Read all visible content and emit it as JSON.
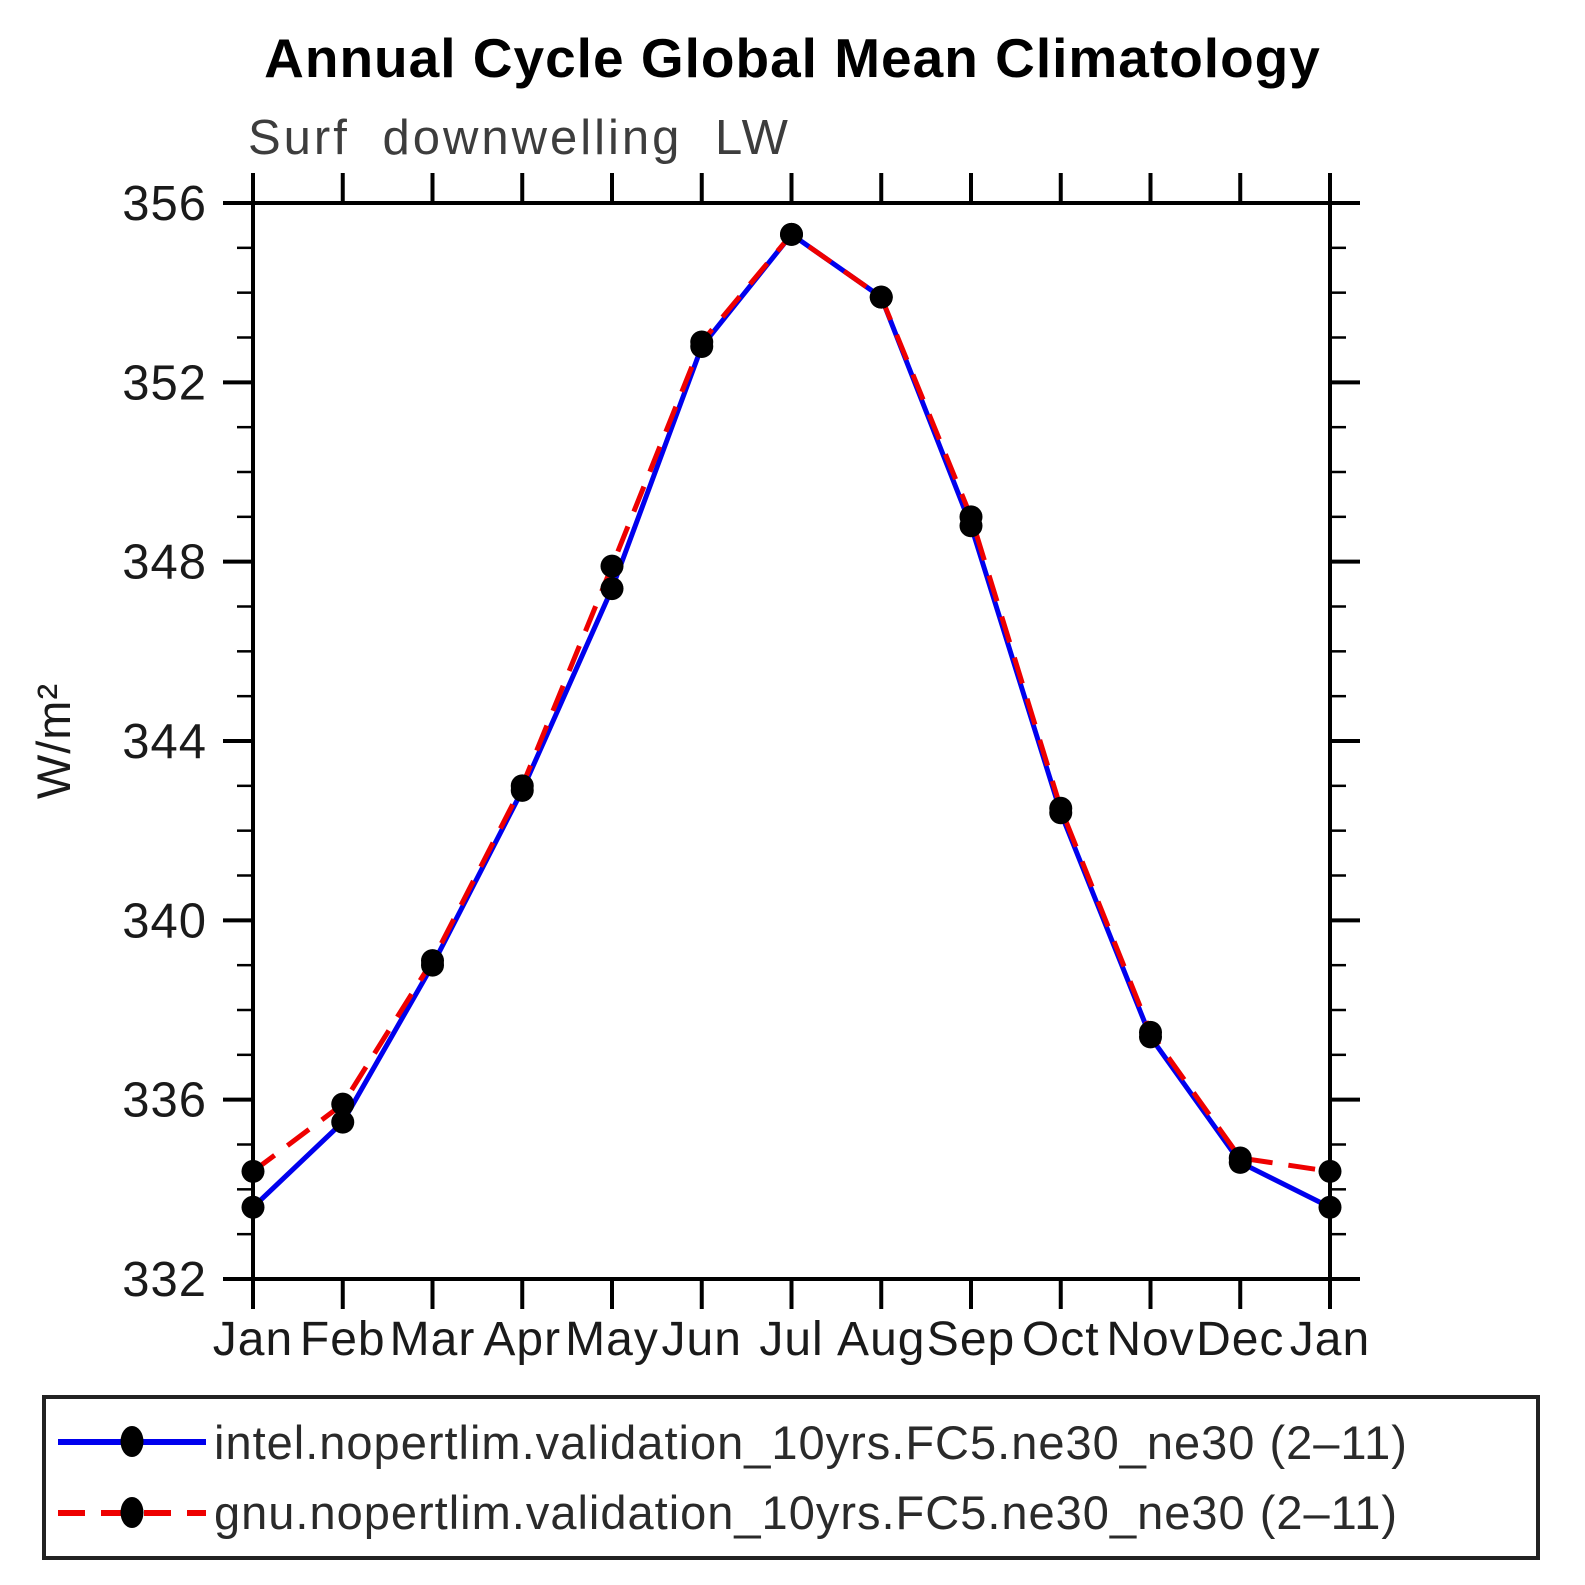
{
  "title": "Annual Cycle Global Mean Climatology",
  "subtitle": "Surf downwelling LW",
  "chart_data": {
    "type": "line",
    "x_categories": [
      "Jan",
      "Feb",
      "Mar",
      "Apr",
      "May",
      "Jun",
      "Jul",
      "Aug",
      "Sep",
      "Oct",
      "Nov",
      "Dec",
      "Jan"
    ],
    "ylabel": "W/m²",
    "ylim": [
      332,
      356
    ],
    "y_major_ticks": [
      332,
      336,
      340,
      344,
      348,
      352,
      356
    ],
    "y_minor_step": 1,
    "grid": "off",
    "legend_position": "bottom",
    "marker_color": "#000000",
    "series": [
      {
        "name": "intel.nopertlim.validation_10yrs.FC5.ne30_ne30 (2–11)",
        "color": "#0000ee",
        "style": "solid",
        "values": [
          333.6,
          335.5,
          339.0,
          342.9,
          347.4,
          352.8,
          355.3,
          353.9,
          348.8,
          342.4,
          337.4,
          334.6,
          333.6
        ]
      },
      {
        "name": "gnu.nopertlim.validation_10yrs.FC5.ne30_ne30 (2–11)",
        "color": "#ee0000",
        "style": "dashed",
        "values": [
          334.4,
          335.9,
          339.1,
          343.0,
          347.9,
          352.9,
          355.3,
          353.9,
          349.0,
          342.5,
          337.5,
          334.7,
          334.4
        ]
      }
    ]
  }
}
